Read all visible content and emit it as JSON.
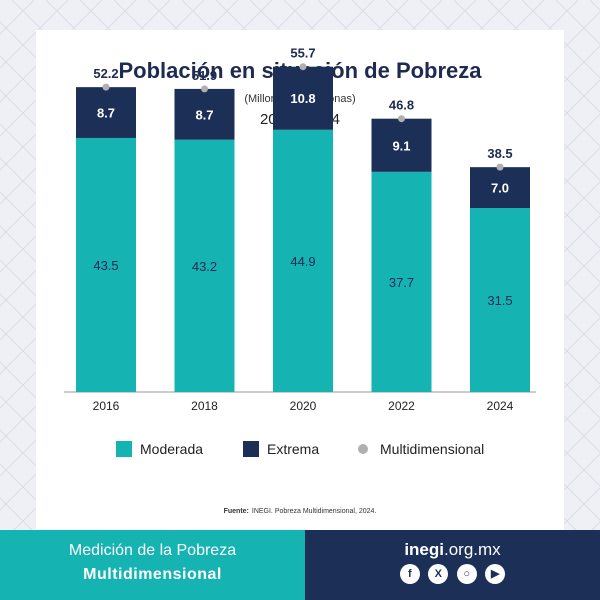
{
  "chart_data": {
    "type": "bar",
    "stacked": true,
    "title": "Población en situación de Pobreza",
    "subtitle": "(Millones de personas)",
    "period": "2016 - 2024",
    "categories": [
      "2016",
      "2018",
      "2020",
      "2022",
      "2024"
    ],
    "series": [
      {
        "name": "Moderada",
        "values": [
          43.5,
          43.2,
          44.9,
          37.7,
          31.5
        ],
        "color": "#16b3b3"
      },
      {
        "name": "Extrema",
        "values": [
          8.7,
          8.7,
          10.8,
          9.1,
          7.0
        ],
        "color": "#1b2f57"
      },
      {
        "name": "Multidimensional",
        "values": [
          52.2,
          51.9,
          55.7,
          46.8,
          38.5
        ],
        "color": "#b0b0b0",
        "kind": "marker"
      }
    ],
    "ylim": [
      0,
      60
    ],
    "grid": false,
    "legend": "bottom",
    "source_label": "Fuente:",
    "source_text": "INEGI. Pobreza Multidimensional, 2024."
  },
  "footer": {
    "line1": "Medición de la Pobreza",
    "line2": "Multidimensional",
    "brand_bold": "inegi",
    "brand_rest": ".org.mx",
    "social_icons": [
      "facebook-icon",
      "x-icon",
      "instagram-icon",
      "youtube-icon"
    ]
  }
}
